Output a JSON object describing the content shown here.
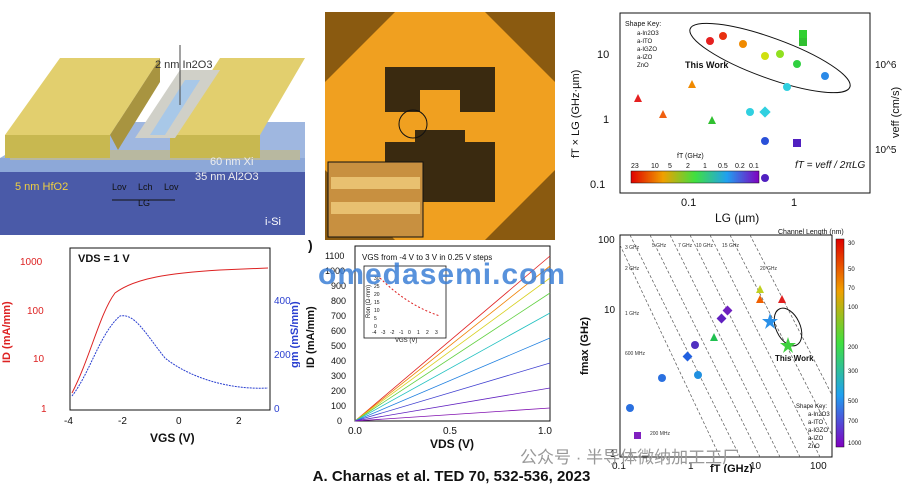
{
  "device_schematic": {
    "labels": {
      "in2o3": "2 nm In2O3",
      "xi": "60 nm Xi",
      "al2o3": "35 nm Al2O3",
      "hfo2": "5 nm HfO2",
      "si": "i-Si",
      "lov_left": "Lov",
      "lch": "Lch",
      "lov_right": "Lov",
      "lg": "LG"
    }
  },
  "micrograph": {
    "alt": "optical micrograph of device"
  },
  "ft_chart": {
    "shape_key": {
      "title": "Shape Key:",
      "entries": [
        "a-In2O3",
        "a-ITO",
        "a-IGZO",
        "a-IZO",
        "ZnO"
      ]
    },
    "this_work": "This Work",
    "xlabel": "LG (µm)",
    "ylabel": "fT × LG (GHz·µm)",
    "ylabel_right": "veff (cm/s)",
    "colorbar_title": "fT (GHz)",
    "colorbar_ticks": [
      "23",
      "10",
      "5",
      "2",
      "1",
      "0.5",
      "0.2",
      "0.1"
    ],
    "formula": "fT = veff / 2πLG",
    "xticks": [
      "0.1",
      "1"
    ],
    "yticks": [
      "0.1",
      "1",
      "10"
    ],
    "yticks_right": [
      "10^5",
      "10^6"
    ]
  },
  "transfer_chart": {
    "vds": "VDS = 1 V",
    "xlabel": "VGS (V)",
    "ylabel_left": "ID (mA/mm)",
    "ylabel_right": "gm (mS/mm)",
    "xticks": [
      "-4",
      "-2",
      "0",
      "2"
    ],
    "yticks_left": [
      "1",
      "10",
      "100",
      "1000"
    ],
    "yticks_right": [
      "0",
      "200",
      "400"
    ]
  },
  "output_chart": {
    "vgs_note": "VGS from -4 V to 3 V in 0.25 V steps",
    "xlabel": "VDS (V)",
    "ylabel": "ID (mA/mm)",
    "xticks": [
      "0.0",
      "0.5",
      "1.0"
    ],
    "yticks": [
      "0",
      "100",
      "200",
      "300",
      "400",
      "500",
      "600",
      "700",
      "800",
      "900",
      "1000",
      "1100"
    ],
    "inset_ylabel": "Ron (Ω·mm)",
    "inset_xlabel": "VGS (V)",
    "inset_xticks": [
      "-4",
      "-3",
      "-2",
      "-1",
      "0",
      "1",
      "2",
      "3"
    ],
    "inset_yticks": [
      "0",
      "5",
      "10",
      "15",
      "20",
      "25",
      "30"
    ],
    "panel_letter": ")"
  },
  "fmax_chart": {
    "colorbar_title": "Channel Length (nm)",
    "colorbar_ticks": [
      "30",
      "50",
      "70",
      "100",
      "200",
      "300",
      "500",
      "700",
      "1000"
    ],
    "shape_key": {
      "title": "Shape Key:",
      "entries": [
        "a-In2O3",
        "a-ITO",
        "a-IGZO",
        "a-IZO",
        "ZnO"
      ]
    },
    "this_work": "This Work",
    "xlabel": "fT (GHz)",
    "ylabel": "fmax (GHz)",
    "xticks": [
      "0.1",
      "1",
      "10",
      "100"
    ],
    "yticks": [
      "1",
      "10",
      "100"
    ],
    "line_labels": [
      "200 MHz",
      "600 MHz",
      "1 GHz",
      "2 GHz",
      "3 GHz",
      "5 GHz",
      "7 GHz",
      "10 GHz",
      "15 GHz",
      "20 GHz"
    ]
  },
  "caption": "A. Charnas et al. TED 70, 532-536, 2023",
  "watermark": "omedasemi.com",
  "wechat_mark": "公众号 · 半导体微纳加工工厂",
  "colors": {
    "accent_blue": "#3b7fd6",
    "gold": "#d8b84a",
    "orange_chip": "#f0a020",
    "red_curve": "#dd2222",
    "blue_curve": "#2a3fd0"
  }
}
